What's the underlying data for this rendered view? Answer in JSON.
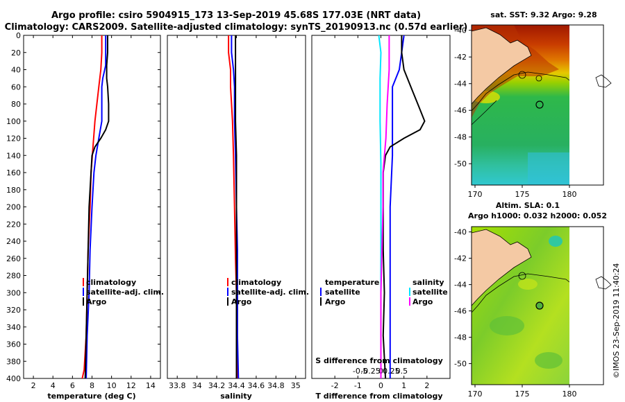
{
  "title_line1": "Argo profile: csiro 5904915_173 13-Sep-2019 45.68S 177.03E (NRT data)",
  "title_line2": "Climatology: CARS2009. Satellite-adjusted climatology: synTS_20190913.nc (0.57d earlier)",
  "depth_ticks": [
    0,
    20,
    40,
    60,
    80,
    100,
    120,
    140,
    160,
    180,
    200,
    220,
    240,
    260,
    280,
    300,
    320,
    340,
    360,
    380,
    400
  ],
  "colors": {
    "climatology": "#ff0000",
    "satellite": "#0000ff",
    "argo": "#000000",
    "sal_sat": "#00e5ff",
    "sal_argo": "#ff00ff",
    "land": "#f4c9a4"
  },
  "chart_data": [
    {
      "type": "line",
      "name": "temperature",
      "xlabel": "temperature (deg C)",
      "ylabel": "",
      "xlim": [
        1,
        15
      ],
      "ylim": [
        0,
        400
      ],
      "xticks": [
        2,
        4,
        6,
        8,
        10,
        12,
        14
      ],
      "legend": [
        "climatology",
        "satellite-adj. clim.",
        "Argo"
      ],
      "series": [
        {
          "name": "climatology",
          "color": "#ff0000",
          "points": [
            [
              9.0,
              0
            ],
            [
              9.0,
              20
            ],
            [
              8.9,
              40
            ],
            [
              8.7,
              60
            ],
            [
              8.5,
              80
            ],
            [
              8.3,
              100
            ],
            [
              8.1,
              130
            ],
            [
              7.9,
              160
            ],
            [
              7.8,
              200
            ],
            [
              7.6,
              250
            ],
            [
              7.5,
              300
            ],
            [
              7.4,
              350
            ],
            [
              7.2,
              390
            ],
            [
              7.0,
              400
            ]
          ]
        },
        {
          "name": "satellite-adj. clim.",
          "color": "#0000ff",
          "points": [
            [
              9.4,
              0
            ],
            [
              9.4,
              20
            ],
            [
              9.4,
              35
            ],
            [
              9.1,
              50
            ],
            [
              9.0,
              60
            ],
            [
              9.0,
              100
            ],
            [
              8.7,
              120
            ],
            [
              8.4,
              140
            ],
            [
              8.2,
              160
            ],
            [
              8.0,
              200
            ],
            [
              7.8,
              250
            ],
            [
              7.7,
              300
            ],
            [
              7.5,
              350
            ],
            [
              7.4,
              400
            ]
          ]
        },
        {
          "name": "Argo",
          "color": "#000000",
          "points": [
            [
              9.6,
              0
            ],
            [
              9.6,
              20
            ],
            [
              9.5,
              35
            ],
            [
              9.5,
              50
            ],
            [
              9.6,
              60
            ],
            [
              9.7,
              80
            ],
            [
              9.7,
              100
            ],
            [
              9.4,
              110
            ],
            [
              8.9,
              120
            ],
            [
              8.3,
              130
            ],
            [
              8.0,
              140
            ],
            [
              7.9,
              160
            ],
            [
              7.8,
              180
            ],
            [
              7.7,
              200
            ],
            [
              7.6,
              250
            ],
            [
              7.5,
              300
            ],
            [
              7.4,
              350
            ],
            [
              7.3,
              400
            ]
          ]
        }
      ]
    },
    {
      "type": "line",
      "name": "salinity",
      "xlabel": "salinity",
      "ylabel": "",
      "xlim": [
        33.7,
        35.1
      ],
      "ylim": [
        0,
        400
      ],
      "xticks": [
        33.8,
        34,
        34.2,
        34.4,
        34.6,
        34.8,
        35
      ],
      "xtick_labels": [
        "33.8",
        "34",
        "34.2",
        "34.4",
        "34.6",
        "34.8",
        "35"
      ],
      "legend": [
        "climatology",
        "satellite-adj. clim.",
        "Argo"
      ],
      "series": [
        {
          "name": "climatology",
          "color": "#ff0000",
          "points": [
            [
              34.32,
              0
            ],
            [
              34.32,
              20
            ],
            [
              34.34,
              40
            ],
            [
              34.34,
              60
            ],
            [
              34.35,
              80
            ],
            [
              34.36,
              100
            ],
            [
              34.37,
              140
            ],
            [
              34.38,
              200
            ],
            [
              34.39,
              260
            ],
            [
              34.4,
              300
            ],
            [
              34.4,
              350
            ],
            [
              34.41,
              400
            ]
          ]
        },
        {
          "name": "satellite-adj. clim.",
          "color": "#0000ff",
          "points": [
            [
              34.35,
              0
            ],
            [
              34.35,
              20
            ],
            [
              34.37,
              40
            ],
            [
              34.38,
              60
            ],
            [
              34.38,
              100
            ],
            [
              34.39,
              140
            ],
            [
              34.4,
              200
            ],
            [
              34.41,
              250
            ],
            [
              34.41,
              300
            ],
            [
              34.41,
              350
            ],
            [
              34.42,
              400
            ]
          ]
        },
        {
          "name": "Argo",
          "color": "#000000",
          "points": [
            [
              34.39,
              0
            ],
            [
              34.39,
              20
            ],
            [
              34.39,
              40
            ],
            [
              34.39,
              60
            ],
            [
              34.39,
              80
            ],
            [
              34.39,
              100
            ],
            [
              34.4,
              140
            ],
            [
              34.4,
              180
            ],
            [
              34.4,
              220
            ],
            [
              34.4,
              260
            ],
            [
              34.4,
              300
            ],
            [
              34.4,
              350
            ],
            [
              34.4,
              400
            ]
          ]
        }
      ]
    },
    {
      "type": "line",
      "name": "difference",
      "xlabel": "T difference from climatology",
      "xlabel2": "S difference from climatology",
      "ylabel": "",
      "xlim": [
        -3,
        3
      ],
      "ylim": [
        0,
        400
      ],
      "xticks": [
        -2,
        -1,
        0,
        1,
        2
      ],
      "xtick_labels": [
        "-2",
        "-1",
        "0",
        "1",
        "2"
      ],
      "s_ticks": [
        -0.5,
        -0.25,
        0,
        0.25,
        0.5
      ],
      "s_tick_labels": [
        "-0.5",
        "-0.25",
        "0",
        "0.25",
        "0.5"
      ],
      "legend_temperature_title": "temperature",
      "legend_salinity_title": "salinity",
      "legend_temperature": [
        "satellite",
        "Argo"
      ],
      "legend_salinity": [
        "satellite",
        "Argo"
      ],
      "series": [
        {
          "name": "T satellite",
          "color": "#0000ff",
          "points": [
            [
              1.0,
              0
            ],
            [
              0.9,
              20
            ],
            [
              0.8,
              40
            ],
            [
              0.5,
              60
            ],
            [
              0.5,
              100
            ],
            [
              0.5,
              120
            ],
            [
              0.5,
              140
            ],
            [
              0.4,
              200
            ],
            [
              0.4,
              300
            ],
            [
              0.4,
              400
            ]
          ]
        },
        {
          "name": "T Argo",
          "color": "#000000",
          "points": [
            [
              0.9,
              0
            ],
            [
              0.9,
              20
            ],
            [
              1.0,
              40
            ],
            [
              1.3,
              60
            ],
            [
              1.6,
              80
            ],
            [
              1.9,
              100
            ],
            [
              1.7,
              110
            ],
            [
              1.0,
              120
            ],
            [
              0.4,
              130
            ],
            [
              0.2,
              140
            ],
            [
              0.1,
              160
            ],
            [
              0.1,
              200
            ],
            [
              0.1,
              250
            ],
            [
              0.15,
              300
            ],
            [
              0.1,
              350
            ],
            [
              0.2,
              400
            ]
          ]
        },
        {
          "name": "S satellite",
          "color": "#00e5ff",
          "points": [
            [
              -0.05,
              0
            ],
            [
              0.0,
              20
            ],
            [
              -0.02,
              50
            ],
            [
              -0.02,
              100
            ],
            [
              0.0,
              150
            ],
            [
              0.0,
              200
            ],
            [
              0.0,
              300
            ],
            [
              0.0,
              400
            ]
          ]
        },
        {
          "name": "S Argo",
          "color": "#ff00ff",
          "points": [
            [
              0.2,
              0
            ],
            [
              0.2,
              40
            ],
            [
              0.15,
              80
            ],
            [
              0.12,
              120
            ],
            [
              0.05,
              160
            ],
            [
              0.05,
              200
            ],
            [
              0.02,
              260
            ],
            [
              0.0,
              300
            ],
            [
              0.0,
              350
            ],
            [
              0.0,
              400
            ]
          ]
        }
      ]
    }
  ],
  "maps": {
    "sst_title": "sat. SST: 9.32 Argo: 9.28",
    "sla_title1": "Altim. SLA: 0.1",
    "sla_title2": "Argo h1000: 0.032 h2000: 0.052",
    "lat_ticks": [
      -40,
      -42,
      -44,
      -46,
      -48,
      -50
    ],
    "lon_ticks": [
      170,
      175,
      180
    ],
    "float_position": [
      177.03,
      -45.68
    ]
  },
  "watermark": "©IMOS 23-Sep-2019 11:40:24"
}
